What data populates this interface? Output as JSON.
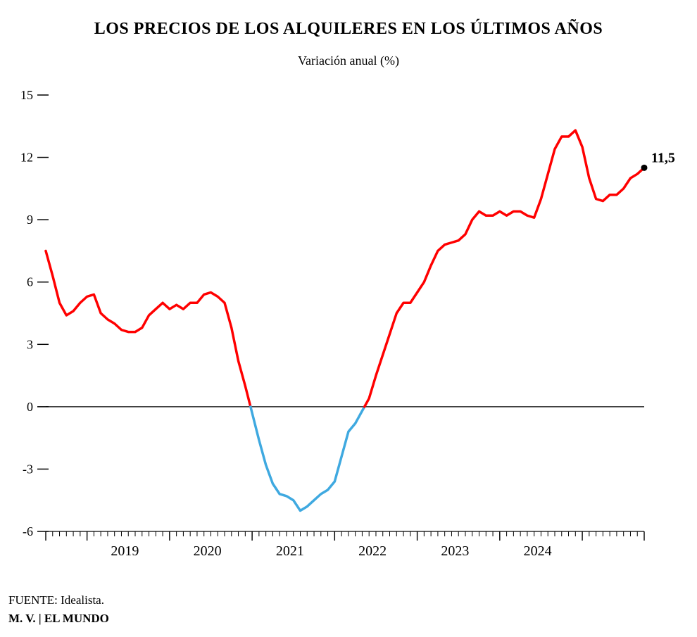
{
  "title": "LOS PRECIOS DE LOS ALQUILERES EN LOS ÚLTIMOS AÑOS",
  "subtitle": "Variación anual (%)",
  "source_prefix": "FUENTE: ",
  "source_name": "Idealista.",
  "credit": "M. V. | EL MUNDO",
  "chart": {
    "type": "line",
    "background_color": "#ffffff",
    "axis_color": "#000000",
    "zero_line_color": "#000000",
    "tick_color": "#000000",
    "title_fontsize": 24,
    "subtitle_fontsize": 18,
    "axis_label_fontsize": 18,
    "year_label_fontsize": 20,
    "endpoint_fontsize": 20,
    "source_fontsize": 17,
    "line_width": 3.5,
    "series": {
      "positive_color": "#ff0000",
      "negative_color": "#3fa9e0",
      "endpoint_marker_color": "#000000",
      "endpoint_marker_radius": 4.5,
      "endpoint_label": "11,5",
      "values": [
        7.5,
        6.3,
        5.0,
        4.4,
        4.6,
        5.0,
        5.3,
        5.4,
        4.5,
        4.2,
        4.0,
        3.7,
        3.6,
        3.6,
        3.8,
        4.4,
        4.7,
        5.0,
        4.7,
        4.9,
        4.7,
        5.0,
        5.0,
        5.4,
        5.5,
        5.3,
        5.0,
        3.8,
        2.2,
        1.0,
        -0.3,
        -1.6,
        -2.8,
        -3.7,
        -4.2,
        -4.3,
        -4.5,
        -5.0,
        -4.8,
        -4.5,
        -4.2,
        -4.0,
        -3.6,
        -2.4,
        -1.2,
        -0.8,
        -0.2,
        0.4,
        1.5,
        2.5,
        3.5,
        4.5,
        5.0,
        5.0,
        5.5,
        6.0,
        6.8,
        7.5,
        7.8,
        7.9,
        8.0,
        8.3,
        9.0,
        9.4,
        9.2,
        9.2,
        9.4,
        9.2,
        9.4,
        9.4,
        9.2,
        9.1,
        10.0,
        11.2,
        12.4,
        13.0,
        13.0,
        13.3,
        12.5,
        11.0,
        10.0,
        9.9,
        10.2,
        10.2,
        10.5,
        11.0,
        11.2,
        11.5
      ]
    },
    "x": {
      "year_labels": [
        "2019",
        "2020",
        "2021",
        "2022",
        "2023",
        "2024"
      ],
      "months_per_year": 12,
      "years_start_index": 6
    },
    "y": {
      "min": -6,
      "max": 15,
      "ticks": [
        -6,
        -3,
        0,
        3,
        6,
        9,
        12,
        15
      ]
    }
  }
}
